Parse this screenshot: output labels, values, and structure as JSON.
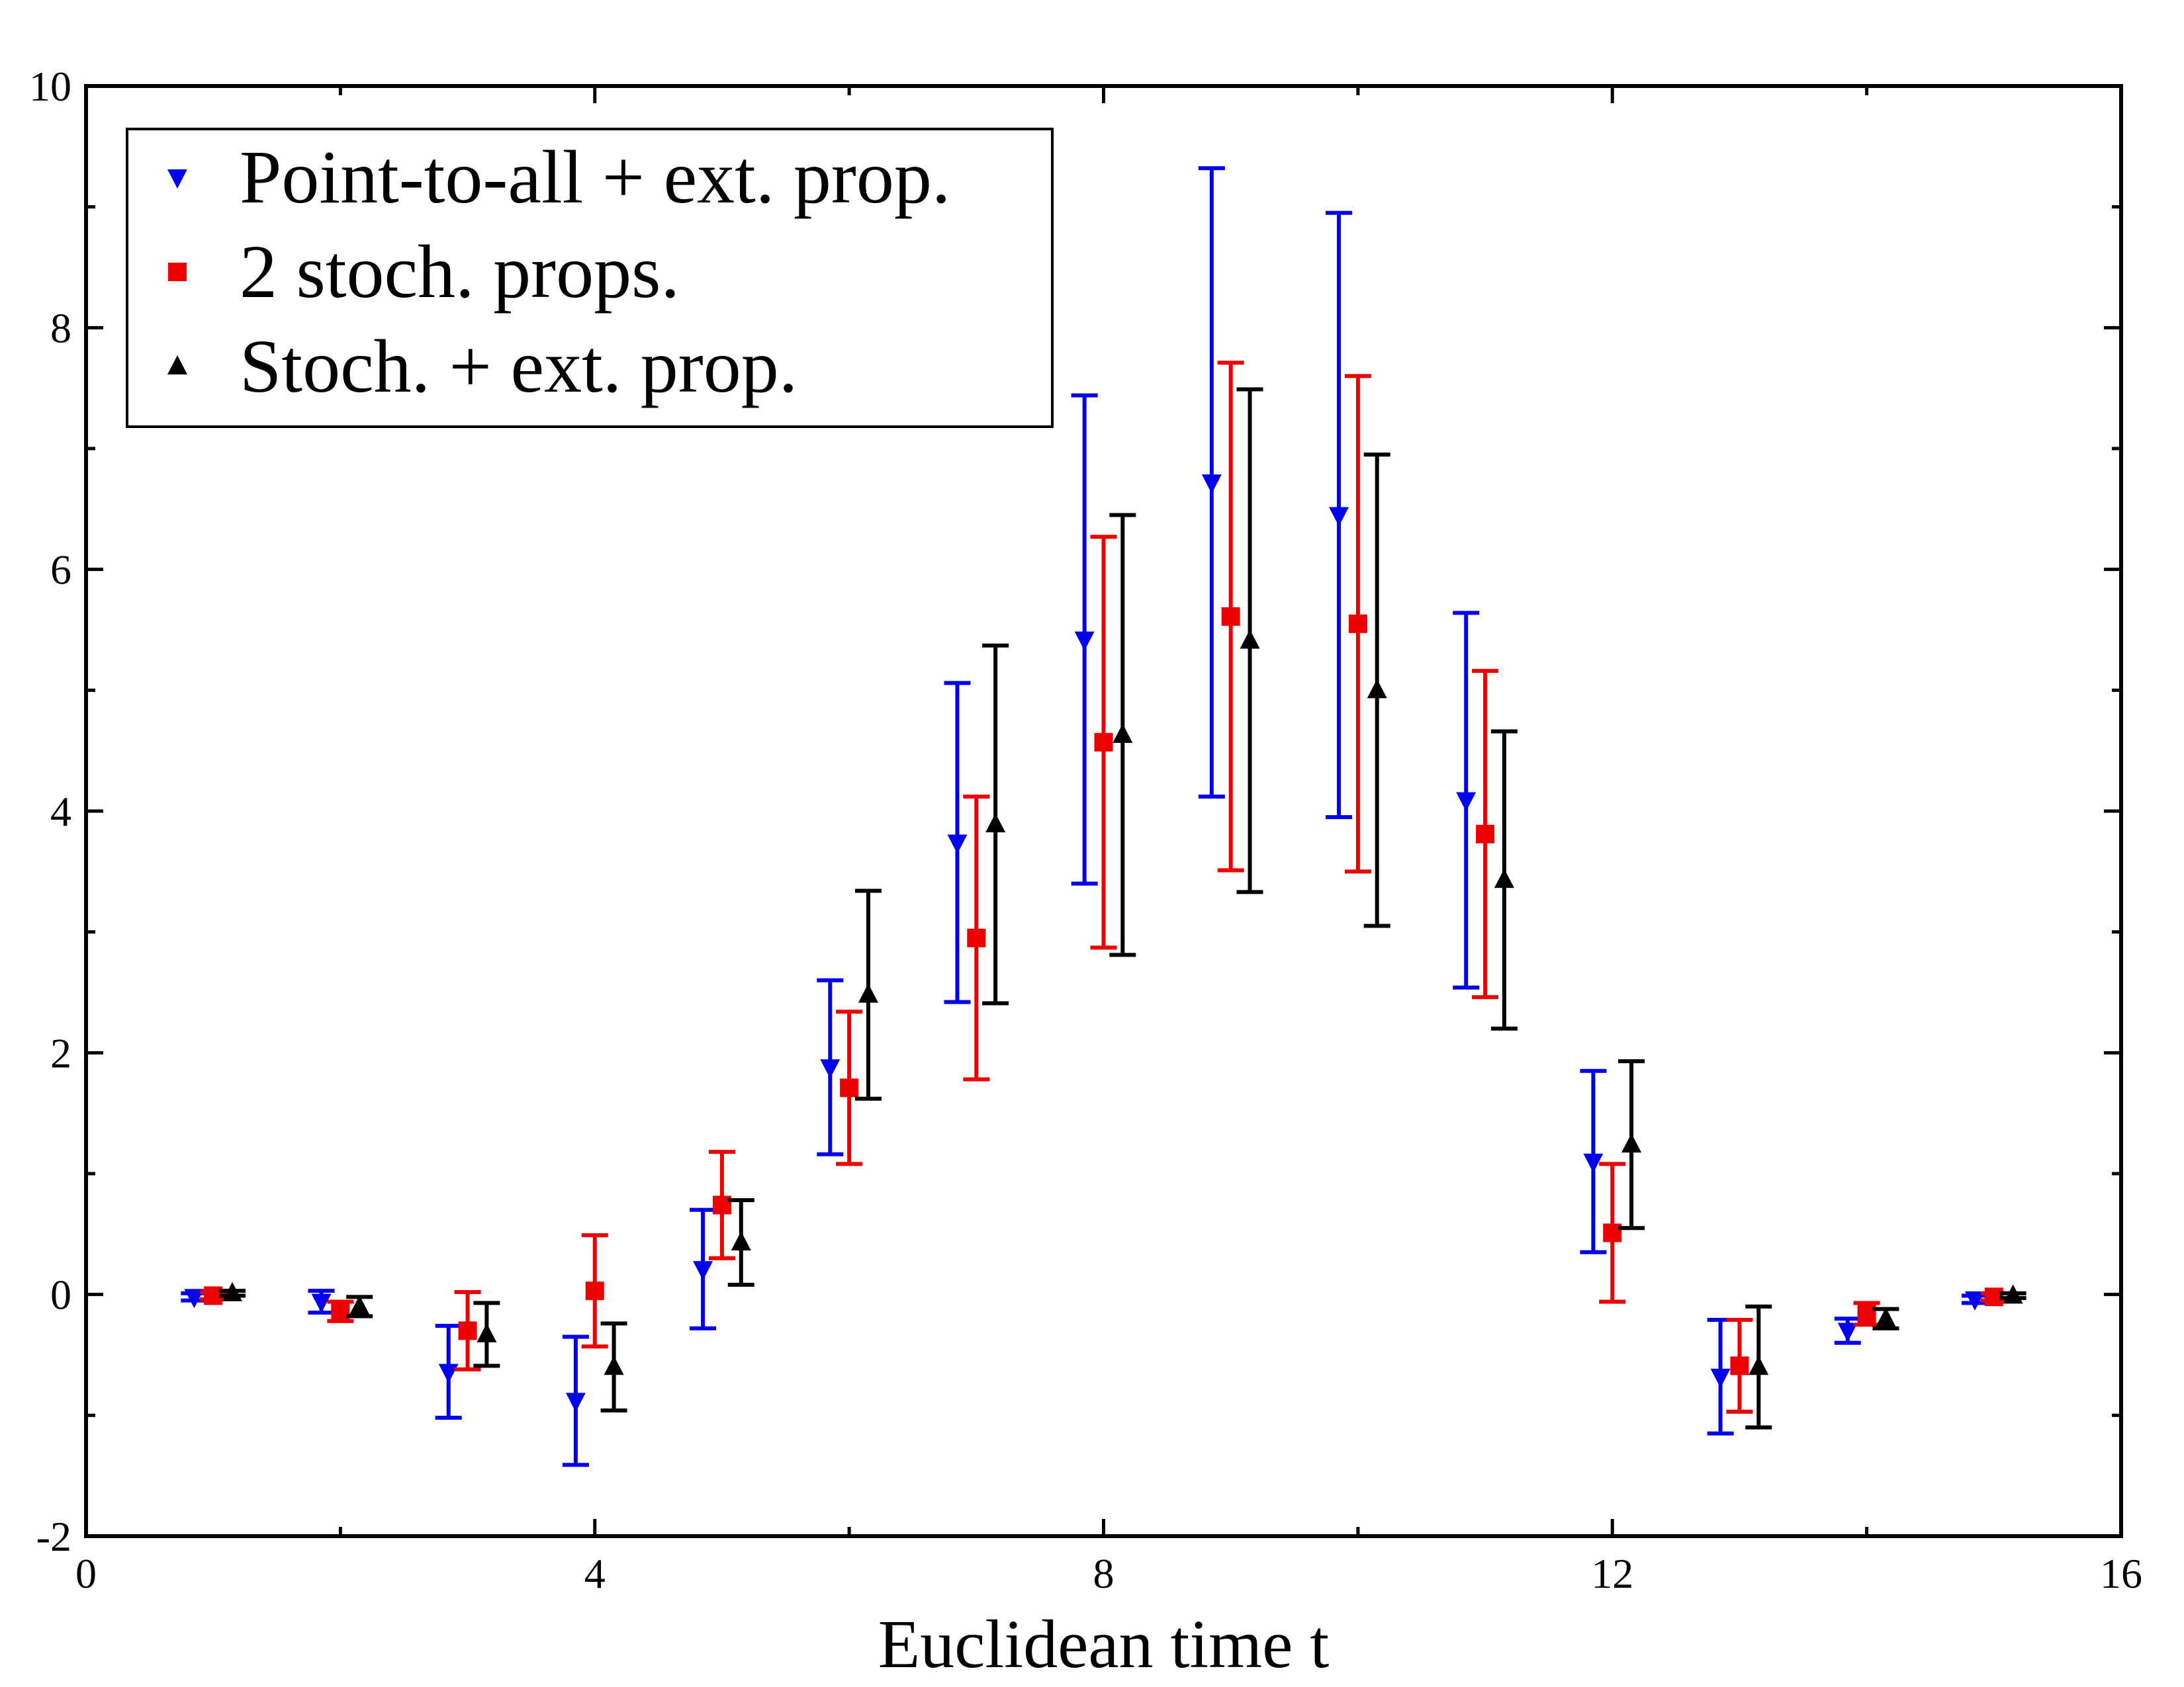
{
  "chart_data": {
    "type": "scatter",
    "title": "",
    "xlabel": "Euclidean time t",
    "ylabel": "",
    "xlim": [
      0,
      16
    ],
    "ylim": [
      -2,
      10
    ],
    "x_major_ticks": [
      0,
      4,
      8,
      12,
      16
    ],
    "x_tick_labels": [
      "0",
      "4",
      "8",
      "12",
      "16"
    ],
    "y_major_ticks": [
      -2,
      0,
      2,
      4,
      6,
      8,
      10
    ],
    "y_tick_labels": [
      "-2",
      "0",
      "2",
      "4",
      "6",
      "8",
      "10"
    ],
    "grid": false,
    "legend_position": "top-left",
    "error_bars": true,
    "series": [
      {
        "name": "Point-to-all + ext. prop.",
        "color": "#0000ee",
        "marker": "triangle-down",
        "x_offset": -0.15,
        "x": [
          1,
          2,
          3,
          4,
          5,
          6,
          7,
          8,
          9,
          10,
          11,
          12,
          13,
          14,
          15
        ],
        "y": [
          -0.02,
          -0.06,
          -0.64,
          -0.88,
          0.21,
          1.88,
          3.74,
          5.42,
          6.72,
          6.45,
          4.09,
          1.1,
          -0.68,
          -0.3,
          -0.04
        ],
        "err": [
          0.03,
          0.09,
          0.38,
          0.53,
          0.49,
          0.72,
          1.32,
          2.02,
          2.6,
          2.5,
          1.55,
          0.75,
          0.47,
          0.1,
          0.03
        ]
      },
      {
        "name": "2 stoch. props.",
        "color": "#ee0000",
        "marker": "square",
        "x_offset": 0,
        "x": [
          1,
          2,
          3,
          4,
          5,
          6,
          7,
          8,
          9,
          10,
          11,
          12,
          13,
          14,
          15
        ],
        "y": [
          -0.01,
          -0.14,
          -0.3,
          0.03,
          0.74,
          1.71,
          2.95,
          4.57,
          5.61,
          5.55,
          3.81,
          0.51,
          -0.59,
          -0.16,
          -0.02
        ],
        "err": [
          0.03,
          0.08,
          0.32,
          0.46,
          0.44,
          0.63,
          1.17,
          1.7,
          2.1,
          2.05,
          1.35,
          0.57,
          0.38,
          0.09,
          0.03
        ]
      },
      {
        "name": "Stoch. + ext. prop.",
        "color": "#000000",
        "marker": "triangle-up",
        "x_offset": 0.15,
        "x": [
          1,
          2,
          3,
          4,
          5,
          6,
          7,
          8,
          9,
          10,
          11,
          12,
          13,
          14,
          15
        ],
        "y": [
          0.01,
          -0.1,
          -0.33,
          -0.6,
          0.43,
          2.48,
          3.89,
          4.63,
          5.41,
          5.0,
          3.43,
          1.24,
          -0.6,
          -0.2,
          -0.01
        ],
        "err": [
          0.02,
          0.08,
          0.26,
          0.36,
          0.35,
          0.86,
          1.48,
          1.82,
          2.08,
          1.95,
          1.23,
          0.69,
          0.5,
          0.08,
          0.02
        ]
      }
    ]
  }
}
